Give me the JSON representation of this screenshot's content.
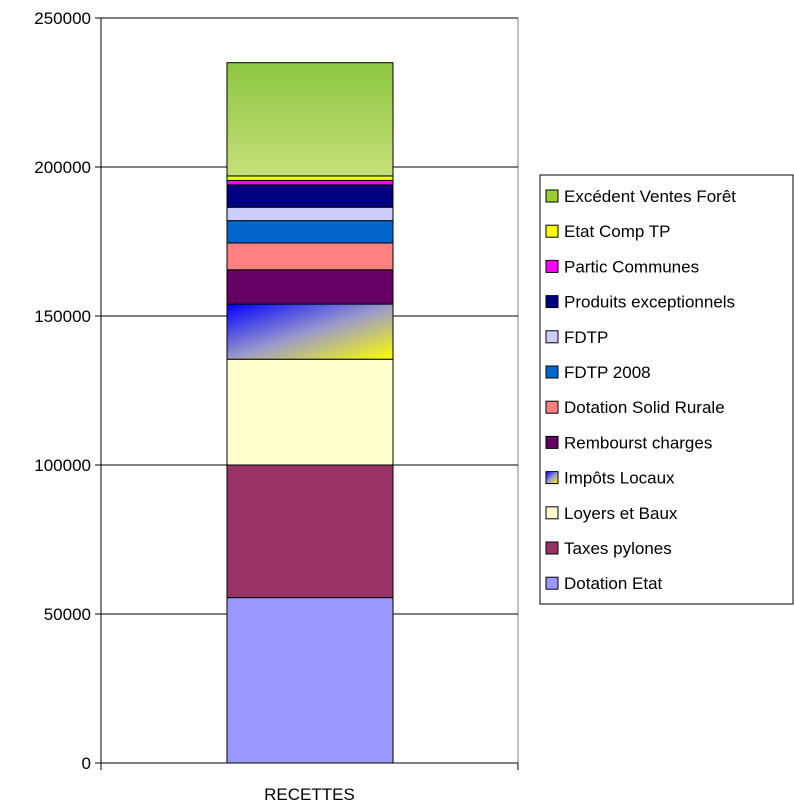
{
  "chart_data": {
    "type": "bar",
    "stacked": true,
    "categories": [
      "RECETTES"
    ],
    "ylim": [
      0,
      250000
    ],
    "yticks": [
      0,
      50000,
      100000,
      150000,
      200000,
      250000
    ],
    "ytick_labels": [
      "0",
      "50000",
      "100000",
      "150000",
      "200000",
      "250000"
    ],
    "grid": true,
    "legend_position": "right",
    "series": [
      {
        "name": "Dotation Etat",
        "values": [
          55500
        ],
        "color": "#9999ff"
      },
      {
        "name": "Taxes pylones",
        "values": [
          44500
        ],
        "color": "#993366"
      },
      {
        "name": "Loyers et Baux",
        "values": [
          35500
        ],
        "color": "#ffffcc"
      },
      {
        "name": "Impôts Locaux",
        "values": [
          18500
        ],
        "color": "gradient"
      },
      {
        "name": "Rembourst charges",
        "values": [
          11500
        ],
        "color": "#660066"
      },
      {
        "name": "Dotation Solid Rurale",
        "values": [
          9000
        ],
        "color": "#ff8080"
      },
      {
        "name": "FDTP 2008",
        "values": [
          7500
        ],
        "color": "#0066cc"
      },
      {
        "name": "FDTP",
        "values": [
          4500
        ],
        "color": "#ccccff"
      },
      {
        "name": "Produits exceptionnels",
        "values": [
          7500
        ],
        "color": "#000080"
      },
      {
        "name": "Partic Communes",
        "values": [
          1500
        ],
        "color": "#ff00ff"
      },
      {
        "name": "Etat Comp TP",
        "values": [
          1500
        ],
        "color": "#ffff00"
      },
      {
        "name": "Excédent Ventes Forêt",
        "values": [
          38000
        ],
        "color": "gradient-green"
      }
    ],
    "legend_order": [
      "Excédent Ventes Forêt",
      "Etat Comp TP",
      "Partic Communes",
      "Produits exceptionnels",
      "FDTP",
      "FDTP 2008",
      "Dotation Solid Rurale",
      "Rembourst charges",
      "Impôts Locaux",
      "Loyers et Baux",
      "Taxes pylones",
      "Dotation Etat"
    ]
  }
}
